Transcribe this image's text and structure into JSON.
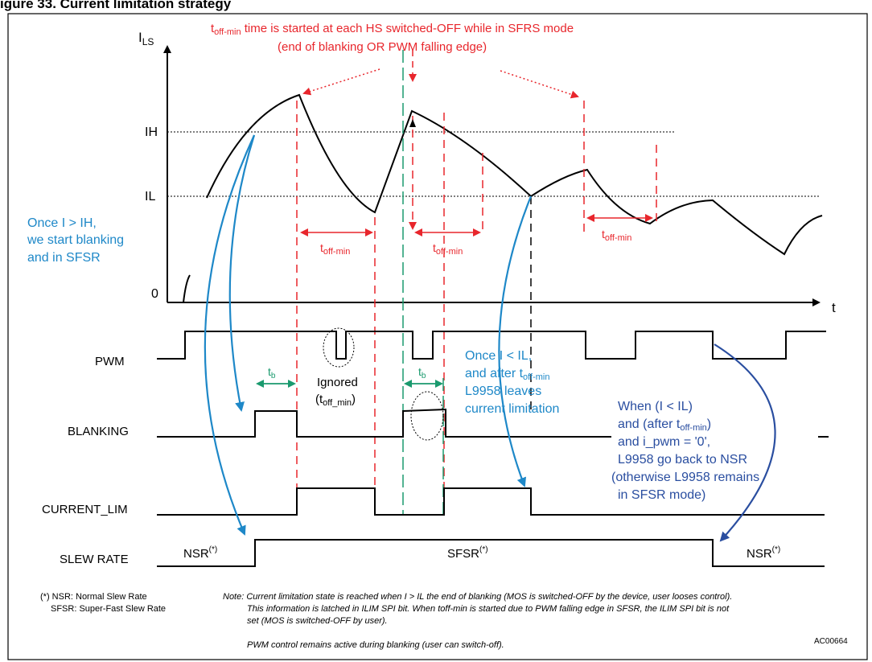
{
  "figure": {
    "title": "igure 33. Current limitation strategy",
    "ref_code": "AC00664"
  },
  "axis": {
    "y_label_main": "I",
    "y_label_sub": "LS",
    "x_label": "t",
    "ih": "IH",
    "il": "IL",
    "zero": "0"
  },
  "annotations": {
    "top_line1_prefix": "t",
    "top_line1_sub": "off-min",
    "top_line1_rest": " time is started at each HS switched-OFF while in SFRS mode",
    "top_line2": "(end of blanking OR PWM falling edge)",
    "toff_prefix": "t",
    "toff_sub": "off-min",
    "blue_left": [
      "Once I > IH,",
      "we start blanking",
      "and in SFSR"
    ],
    "ignored1": "Ignored",
    "ignored2_prefix": "(t",
    "ignored2_sub": "off_min",
    "ignored2_suffix": ")",
    "tb_prefix": "t",
    "tb_sub": "b",
    "blue_mid_1": "Once I < IL,",
    "blue_mid_2_prefix": "and after t",
    "blue_mid_2_sub": "off-min",
    "blue_mid_3": "L9958 leaves",
    "blue_mid_4": "current limitation",
    "blue_right_1": "When (I < IL)",
    "blue_right_2_prefix": "and (after t",
    "blue_right_2_sub": "off-min",
    "blue_right_2_suffix": ")",
    "blue_right_3": "and i_pwm = '0',",
    "blue_right_4": "L9958 go back to NSR",
    "blue_right_5": "(otherwise L9958 remains",
    "blue_right_6": "in SFSR mode)"
  },
  "signals": {
    "pwm": "PWM",
    "blanking": "BLANKING",
    "current_lim": "CURRENT_LIM",
    "slew_rate": "SLEW RATE",
    "nsr": "NSR",
    "sfsr": "SFSR",
    "star": "(*)"
  },
  "footnotes": {
    "legend1": "(*) NSR: Normal Slew Rate",
    "legend2": "SFSR: Super-Fast Slew Rate",
    "note1": "Note: Current limitation state is reached when I > IL the end of blanking (MOS is switched-OFF by the device, user looses control).",
    "note2": "This information is latched in ILIM SPI bit. When toff-min is started due to PWM falling edge in SFSR, the ILIM SPI bit is not",
    "note3": "set (MOS is switched-OFF by user).",
    "note4": "PWM control remains active during blanking (user can switch-off)."
  },
  "colors": {
    "red": "#e8262c",
    "blue_light": "#1e88c8",
    "blue_dark": "#2a4ea0",
    "green": "#1a9a6e",
    "black": "#000000"
  }
}
